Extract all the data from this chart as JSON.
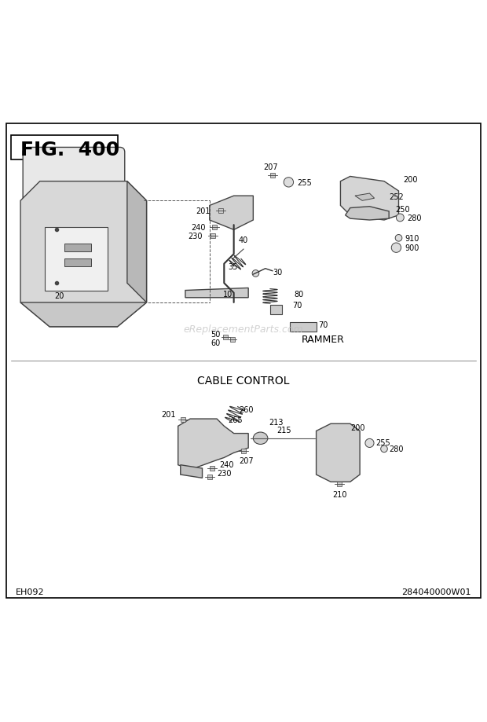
{
  "title": "FIG.  400",
  "bottom_left": "EH092",
  "bottom_right": "284040000W01",
  "watermark": "eReplacementParts.com",
  "background_color": "#ffffff",
  "border_color": "#000000",
  "text_color": "#000000",
  "fig_width": 6.2,
  "fig_height": 9.2,
  "dpi": 100,
  "upper_label": "RAMMER",
  "lower_label": "CABLE CONTROL"
}
